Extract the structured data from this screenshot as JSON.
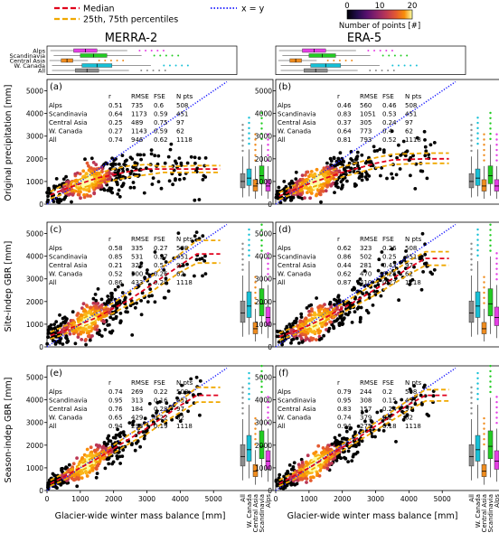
{
  "legend": {
    "median_label": "Median",
    "pct_label": "25th, 75th percentiles",
    "xy_label": "x = y",
    "colorbar_label": "Number of points [#]",
    "colorbar_ticks": [
      "0",
      "10",
      "20"
    ]
  },
  "colors": {
    "median": "#e0001c",
    "percentiles": "#f0a800",
    "xy": "#1a1aff",
    "points": "#000000",
    "box_all": "#8c8c8c",
    "box_wcanada": "#16c0d6",
    "box_central_asia": "#f08c1e",
    "box_scandinavia": "#22cc22",
    "box_alps": "#e43ee4"
  },
  "columns": [
    "MERRA-2",
    "ERA-5"
  ],
  "row_ylabels": [
    "Original precipitation [mm]",
    "Site-indep GBR [mm]",
    "Season-indep GBR [mm]"
  ],
  "xlabel": "Glacier-wide winter mass balance [mm]",
  "stats_headers": [
    "r",
    "RMSE",
    "FSE",
    "N pts"
  ],
  "regions": [
    "Alps",
    "Scandinavia",
    "Central Asia",
    "W. Canada",
    "All"
  ],
  "top_box_labels": [
    "Alps",
    "Scandinavia",
    "Central Asia",
    "W. Canada",
    "All"
  ],
  "side_box_labels": [
    "All",
    "W. Canada",
    "Central Asia",
    "Scandinavia",
    "Alps"
  ],
  "chart_data": [
    {
      "panel": "(a)",
      "type": "scatter",
      "column": "MERRA-2",
      "ylabel": "Original precipitation [mm]",
      "xlim": [
        0,
        5700
      ],
      "ylim": [
        0,
        5500
      ],
      "stats": [
        [
          "Alps",
          "0.51",
          "735",
          "0.6",
          "508"
        ],
        [
          "Scandinavia",
          "0.64",
          "1173",
          "0.59",
          "451"
        ],
        [
          "Central Asia",
          "0.25",
          "489",
          "0.75",
          "97"
        ],
        [
          "W. Canada",
          "0.27",
          "1143",
          "0.59",
          "62"
        ],
        [
          "All",
          "0.74",
          "946",
          "0.62",
          "1118"
        ]
      ],
      "median": [
        [
          100,
          400
        ],
        [
          500,
          650
        ],
        [
          1000,
          900
        ],
        [
          1500,
          1150
        ],
        [
          2000,
          1300
        ],
        [
          2500,
          1450
        ],
        [
          3000,
          1550
        ],
        [
          3500,
          1550
        ],
        [
          4500,
          1550
        ],
        [
          5200,
          1550
        ]
      ],
      "p25": [
        [
          100,
          250
        ],
        [
          500,
          450
        ],
        [
          1000,
          700
        ],
        [
          1500,
          900
        ],
        [
          2000,
          1050
        ],
        [
          2500,
          1200
        ],
        [
          3000,
          1300
        ],
        [
          3500,
          1400
        ],
        [
          4500,
          1400
        ],
        [
          5200,
          1400
        ]
      ],
      "p75": [
        [
          100,
          550
        ],
        [
          500,
          850
        ],
        [
          1000,
          1100
        ],
        [
          1500,
          1350
        ],
        [
          2000,
          1550
        ],
        [
          2500,
          1700
        ],
        [
          3000,
          1750
        ],
        [
          3500,
          1650
        ],
        [
          4500,
          1700
        ],
        [
          5200,
          1700
        ]
      ]
    },
    {
      "panel": "(b)",
      "type": "scatter",
      "column": "ERA-5",
      "ylabel": "Original precipitation [mm]",
      "xlim": [
        0,
        5700
      ],
      "ylim": [
        0,
        5500
      ],
      "stats": [
        [
          "Alps",
          "0.46",
          "560",
          "0.46",
          "508"
        ],
        [
          "Scandinavia",
          "0.83",
          "1051",
          "0.53",
          "451"
        ],
        [
          "Central Asia",
          "0.37",
          "305",
          "0.24",
          "97"
        ],
        [
          "W. Canada",
          "0.64",
          "773",
          "0.4",
          "62"
        ],
        [
          "All",
          "0.81",
          "793",
          "0.52",
          "1118"
        ]
      ],
      "median": [
        [
          100,
          350
        ],
        [
          500,
          600
        ],
        [
          1000,
          900
        ],
        [
          1500,
          1150
        ],
        [
          2000,
          1400
        ],
        [
          2500,
          1600
        ],
        [
          3000,
          1800
        ],
        [
          3500,
          1950
        ],
        [
          4500,
          2000
        ],
        [
          5200,
          2000
        ]
      ],
      "p25": [
        [
          100,
          200
        ],
        [
          500,
          450
        ],
        [
          1000,
          700
        ],
        [
          1500,
          950
        ],
        [
          2000,
          1200
        ],
        [
          2500,
          1400
        ],
        [
          3000,
          1600
        ],
        [
          3500,
          1750
        ],
        [
          4500,
          1800
        ],
        [
          5200,
          1800
        ]
      ],
      "p75": [
        [
          100,
          500
        ],
        [
          500,
          800
        ],
        [
          1000,
          1100
        ],
        [
          1500,
          1400
        ],
        [
          2000,
          1650
        ],
        [
          2500,
          1850
        ],
        [
          3000,
          2050
        ],
        [
          3500,
          2200
        ],
        [
          4500,
          2250
        ],
        [
          5200,
          2250
        ]
      ]
    },
    {
      "panel": "(c)",
      "type": "scatter",
      "column": "MERRA-2",
      "ylabel": "Site-indep GBR [mm]",
      "xlim": [
        0,
        5700
      ],
      "ylim": [
        0,
        5500
      ],
      "stats": [
        [
          "Alps",
          "0.58",
          "335",
          "0.27",
          "508"
        ],
        [
          "Scandinavia",
          "0.85",
          "531",
          "0.27",
          "451"
        ],
        [
          "Central Asia",
          "0.21",
          "328",
          "0.5",
          "97"
        ],
        [
          "W. Canada",
          "0.52",
          "500",
          "0.26",
          "62"
        ],
        [
          "All",
          "0.86",
          "433",
          "0.28",
          "1118"
        ]
      ],
      "median": [
        [
          100,
          500
        ],
        [
          500,
          700
        ],
        [
          1000,
          1000
        ],
        [
          1500,
          1300
        ],
        [
          2000,
          1700
        ],
        [
          2500,
          2100
        ],
        [
          3000,
          2600
        ],
        [
          3500,
          3100
        ],
        [
          4000,
          3600
        ],
        [
          4500,
          4100
        ],
        [
          5200,
          4100
        ]
      ],
      "p25": [
        [
          100,
          350
        ],
        [
          500,
          550
        ],
        [
          1000,
          850
        ],
        [
          1500,
          1150
        ],
        [
          2000,
          1500
        ],
        [
          2500,
          1900
        ],
        [
          3000,
          2300
        ],
        [
          3500,
          2800
        ],
        [
          4000,
          3300
        ],
        [
          4500,
          3700
        ],
        [
          5200,
          3700
        ]
      ],
      "p75": [
        [
          100,
          650
        ],
        [
          500,
          900
        ],
        [
          1000,
          1200
        ],
        [
          1500,
          1550
        ],
        [
          2000,
          1950
        ],
        [
          2500,
          2450
        ],
        [
          3000,
          2950
        ],
        [
          3500,
          3550
        ],
        [
          4000,
          4100
        ],
        [
          4500,
          4700
        ],
        [
          5200,
          4700
        ]
      ]
    },
    {
      "panel": "(d)",
      "type": "scatter",
      "column": "ERA-5",
      "ylabel": "Site-indep GBR [mm]",
      "xlim": [
        0,
        5700
      ],
      "ylim": [
        0,
        5500
      ],
      "stats": [
        [
          "Alps",
          "0.62",
          "323",
          "0.26",
          "508"
        ],
        [
          "Scandinavia",
          "0.86",
          "502",
          "0.25",
          "451"
        ],
        [
          "Central Asia",
          "0.44",
          "281",
          "0.43",
          "97"
        ],
        [
          "W. Canada",
          "0.62",
          "470",
          "0.24",
          "62"
        ],
        [
          "All",
          "0.87",
          "410",
          "0.27",
          "1118"
        ]
      ],
      "median": [
        [
          100,
          450
        ],
        [
          500,
          650
        ],
        [
          1000,
          950
        ],
        [
          1500,
          1300
        ],
        [
          2000,
          1700
        ],
        [
          2500,
          2100
        ],
        [
          3000,
          2550
        ],
        [
          3500,
          3000
        ],
        [
          4000,
          3500
        ],
        [
          4500,
          3900
        ],
        [
          5200,
          3900
        ]
      ],
      "p25": [
        [
          100,
          300
        ],
        [
          500,
          500
        ],
        [
          1000,
          800
        ],
        [
          1500,
          1150
        ],
        [
          2000,
          1500
        ],
        [
          2500,
          1900
        ],
        [
          3000,
          2300
        ],
        [
          3500,
          2750
        ],
        [
          4000,
          3200
        ],
        [
          4500,
          3600
        ],
        [
          5200,
          3600
        ]
      ],
      "p75": [
        [
          100,
          600
        ],
        [
          500,
          850
        ],
        [
          1000,
          1150
        ],
        [
          1500,
          1500
        ],
        [
          2000,
          1900
        ],
        [
          2500,
          2350
        ],
        [
          3000,
          2850
        ],
        [
          3500,
          3300
        ],
        [
          4000,
          3800
        ],
        [
          4500,
          4200
        ],
        [
          5200,
          4200
        ]
      ]
    },
    {
      "panel": "(e)",
      "type": "scatter",
      "column": "MERRA-2",
      "ylabel": "Season-indep GBR [mm]",
      "xlim": [
        0,
        5700
      ],
      "ylim": [
        0,
        5500
      ],
      "stats": [
        [
          "Alps",
          "0.74",
          "269",
          "0.22",
          "508"
        ],
        [
          "Scandinavia",
          "0.95",
          "313",
          "0.16",
          "451"
        ],
        [
          "Central Asia",
          "0.76",
          "184",
          "0.28",
          "97"
        ],
        [
          "W. Canada",
          "0.65",
          "429",
          "0.22",
          "62"
        ],
        [
          "All",
          "0.94",
          "293",
          "0.19",
          "1118"
        ]
      ],
      "median": [
        [
          100,
          300
        ],
        [
          500,
          600
        ],
        [
          1000,
          1000
        ],
        [
          1500,
          1400
        ],
        [
          2000,
          1850
        ],
        [
          2500,
          2300
        ],
        [
          3000,
          2750
        ],
        [
          3500,
          3250
        ],
        [
          4000,
          3750
        ],
        [
          4500,
          4200
        ],
        [
          5200,
          4200
        ]
      ],
      "p25": [
        [
          100,
          200
        ],
        [
          500,
          450
        ],
        [
          1000,
          850
        ],
        [
          1500,
          1250
        ],
        [
          2000,
          1650
        ],
        [
          2500,
          2100
        ],
        [
          3000,
          2500
        ],
        [
          3500,
          3000
        ],
        [
          4000,
          3450
        ],
        [
          4500,
          3900
        ],
        [
          5200,
          3900
        ]
      ],
      "p75": [
        [
          100,
          450
        ],
        [
          500,
          750
        ],
        [
          1000,
          1150
        ],
        [
          1500,
          1550
        ],
        [
          2000,
          2000
        ],
        [
          2500,
          2500
        ],
        [
          3000,
          2950
        ],
        [
          3500,
          3450
        ],
        [
          4000,
          3950
        ],
        [
          4500,
          4550
        ],
        [
          5200,
          4550
        ]
      ]
    },
    {
      "panel": "(f)",
      "type": "scatter",
      "column": "ERA-5",
      "ylabel": "Season-indep GBR [mm]",
      "xlim": [
        0,
        5700
      ],
      "ylim": [
        0,
        5500
      ],
      "stats": [
        [
          "Alps",
          "0.79",
          "244",
          "0.2",
          "508"
        ],
        [
          "Scandinavia",
          "0.95",
          "308",
          "0.15",
          "451"
        ],
        [
          "Central Asia",
          "0.83",
          "157",
          "0.24",
          "97"
        ],
        [
          "W. Canada",
          "0.74",
          "379",
          "0.2",
          "62"
        ],
        [
          "All",
          "0.94",
          "275",
          "0.18",
          "1118"
        ]
      ],
      "median": [
        [
          100,
          300
        ],
        [
          500,
          600
        ],
        [
          1000,
          1000
        ],
        [
          1500,
          1450
        ],
        [
          2000,
          1900
        ],
        [
          2500,
          2350
        ],
        [
          3000,
          2850
        ],
        [
          3500,
          3300
        ],
        [
          4000,
          3800
        ],
        [
          4500,
          4200
        ],
        [
          5200,
          4200
        ]
      ],
      "p25": [
        [
          100,
          200
        ],
        [
          500,
          450
        ],
        [
          1000,
          850
        ],
        [
          1500,
          1300
        ],
        [
          2000,
          1750
        ],
        [
          2500,
          2200
        ],
        [
          3000,
          2650
        ],
        [
          3500,
          3100
        ],
        [
          4000,
          3550
        ],
        [
          4500,
          3950
        ],
        [
          5200,
          3950
        ]
      ],
      "p75": [
        [
          100,
          450
        ],
        [
          500,
          750
        ],
        [
          1000,
          1150
        ],
        [
          1500,
          1600
        ],
        [
          2000,
          2050
        ],
        [
          2500,
          2500
        ],
        [
          3000,
          3000
        ],
        [
          3500,
          3500
        ],
        [
          4000,
          4000
        ],
        [
          4500,
          4450
        ],
        [
          5200,
          4450
        ]
      ]
    }
  ],
  "x_ticks": [
    "0",
    "1000",
    "2000",
    "3000",
    "4000",
    "5000"
  ],
  "y_ticks": [
    "0",
    "1000",
    "2000",
    "3000",
    "4000",
    "5000"
  ]
}
